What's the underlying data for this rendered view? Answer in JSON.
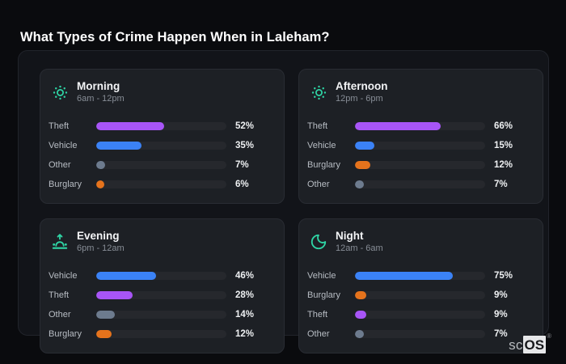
{
  "title": "What Types of Crime Happen When in Laleham?",
  "brand": {
    "prefix": "sc",
    "box": "OS",
    "mark": "®"
  },
  "colors": {
    "icon_teal": "#2fd5a5",
    "purple": "#a855f7",
    "blue": "#3b82f6",
    "gray": "#6d7b8e",
    "orange": "#e5731c",
    "track": "#26282d",
    "panel_bg": "#121419",
    "card_bg": "#1d2025"
  },
  "chart_data": [
    {
      "type": "bar",
      "orientation": "horizontal",
      "title": "Morning",
      "subtitle": "6am - 12pm",
      "icon": "sun-icon",
      "unit": "%",
      "xlim": [
        0,
        100
      ],
      "categories": [
        "Theft",
        "Vehicle",
        "Other",
        "Burglary"
      ],
      "values": [
        52,
        35,
        7,
        6
      ],
      "value_labels": [
        "52%",
        "35%",
        "7%",
        "6%"
      ],
      "bar_colors": [
        "#a855f7",
        "#3b82f6",
        "#6d7b8e",
        "#e5731c"
      ]
    },
    {
      "type": "bar",
      "orientation": "horizontal",
      "title": "Afternoon",
      "subtitle": "12pm - 6pm",
      "icon": "sun-icon",
      "unit": "%",
      "xlim": [
        0,
        100
      ],
      "categories": [
        "Theft",
        "Vehicle",
        "Burglary",
        "Other"
      ],
      "values": [
        66,
        15,
        12,
        7
      ],
      "value_labels": [
        "66%",
        "15%",
        "12%",
        "7%"
      ],
      "bar_colors": [
        "#a855f7",
        "#3b82f6",
        "#e5731c",
        "#6d7b8e"
      ]
    },
    {
      "type": "bar",
      "orientation": "horizontal",
      "title": "Evening",
      "subtitle": "6pm - 12am",
      "icon": "sunrise-icon",
      "unit": "%",
      "xlim": [
        0,
        100
      ],
      "categories": [
        "Vehicle",
        "Theft",
        "Other",
        "Burglary"
      ],
      "values": [
        46,
        28,
        14,
        12
      ],
      "value_labels": [
        "46%",
        "28%",
        "14%",
        "12%"
      ],
      "bar_colors": [
        "#3b82f6",
        "#a855f7",
        "#6d7b8e",
        "#e5731c"
      ]
    },
    {
      "type": "bar",
      "orientation": "horizontal",
      "title": "Night",
      "subtitle": "12am - 6am",
      "icon": "moon-icon",
      "unit": "%",
      "xlim": [
        0,
        100
      ],
      "categories": [
        "Vehicle",
        "Burglary",
        "Theft",
        "Other"
      ],
      "values": [
        75,
        9,
        9,
        7
      ],
      "value_labels": [
        "75%",
        "9%",
        "9%",
        "7%"
      ],
      "bar_colors": [
        "#3b82f6",
        "#e5731c",
        "#a855f7",
        "#6d7b8e"
      ]
    }
  ]
}
